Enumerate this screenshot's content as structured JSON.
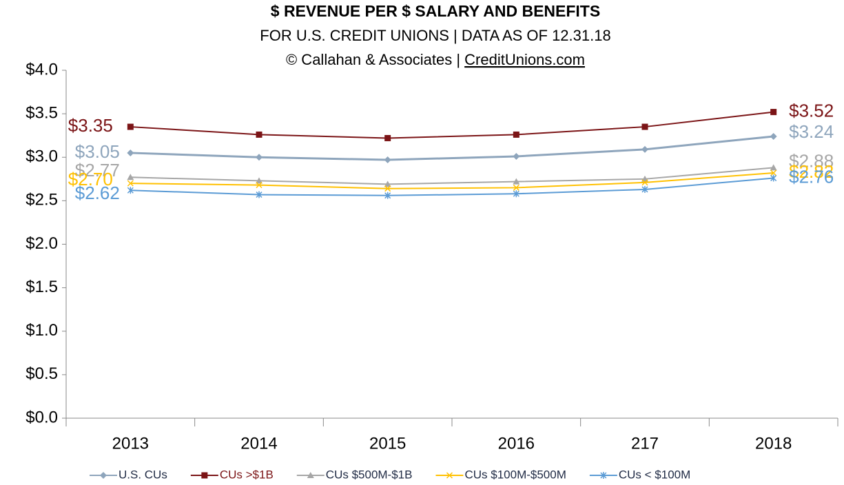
{
  "chart_data": {
    "type": "line",
    "title": "$ REVENUE PER $ SALARY AND BENEFITS",
    "subtitle": "FOR U.S. CREDIT UNIONS | DATA AS OF 12.31.18",
    "source": "© Callahan & Associates | ",
    "source_link": "CreditUnions.com",
    "categories": [
      "2013",
      "2014",
      "2015",
      "2016",
      "217",
      "2018"
    ],
    "series": [
      {
        "name": "U.S. CUs",
        "color": "#8ea5bc",
        "marker": "diamond",
        "values": [
          3.05,
          3.0,
          2.97,
          3.01,
          3.09,
          3.24
        ],
        "value_labels": [
          "$3.05",
          null,
          null,
          null,
          null,
          "$3.24"
        ]
      },
      {
        "name": "CUs >$1B",
        "color": "#7b1416",
        "marker": "square",
        "values": [
          3.35,
          3.26,
          3.22,
          3.26,
          3.35,
          3.52
        ],
        "value_labels": [
          "$3.35",
          null,
          null,
          null,
          null,
          "$3.52"
        ]
      },
      {
        "name": "CUs $500M-$1B",
        "color": "#a6a6a6",
        "marker": "triangle",
        "values": [
          2.77,
          2.73,
          2.69,
          2.72,
          2.75,
          2.88
        ],
        "value_labels": [
          "$2.77",
          null,
          null,
          null,
          null,
          "$2.88"
        ]
      },
      {
        "name": "CUs $100M-$500M",
        "color": "#ffc000",
        "marker": "x",
        "values": [
          2.7,
          2.68,
          2.64,
          2.65,
          2.71,
          2.82
        ],
        "value_labels": [
          "$2.70",
          null,
          null,
          null,
          null,
          "$2.82"
        ]
      },
      {
        "name": "CUs < $100M",
        "color": "#5b9bd5",
        "marker": "star",
        "values": [
          2.62,
          2.57,
          2.56,
          2.58,
          2.63,
          2.76
        ],
        "value_labels": [
          "$2.62",
          null,
          null,
          null,
          null,
          "$2.76"
        ]
      }
    ],
    "ylim": [
      0,
      4
    ],
    "yticks": [
      {
        "value": 0,
        "label": "$0.0"
      },
      {
        "value": 0.5,
        "label": "$0.5"
      },
      {
        "value": 1,
        "label": "$1.0"
      },
      {
        "value": 1.5,
        "label": "$1.5"
      },
      {
        "value": 2,
        "label": "$2.0"
      },
      {
        "value": 2.5,
        "label": "$2.5"
      },
      {
        "value": 3,
        "label": "$3.0"
      },
      {
        "value": 3.5,
        "label": "$3.5"
      },
      {
        "value": 4,
        "label": "$4.0"
      }
    ],
    "grid": false,
    "legend": "bottom"
  }
}
